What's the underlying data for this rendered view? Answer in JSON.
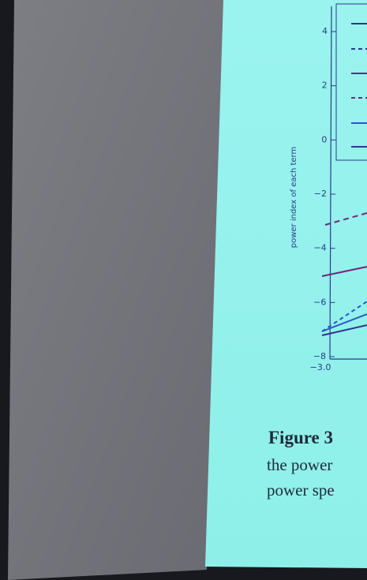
{
  "figure": {
    "y_axis_label": "power index of each term",
    "y_ticks": [
      "4",
      "2",
      "0",
      "−2",
      "−4",
      "−6",
      "−8"
    ],
    "x_tick": "−3.0"
  },
  "caption": {
    "title": "Figure 3",
    "lines": [
      "the power",
      "power spe"
    ]
  }
}
